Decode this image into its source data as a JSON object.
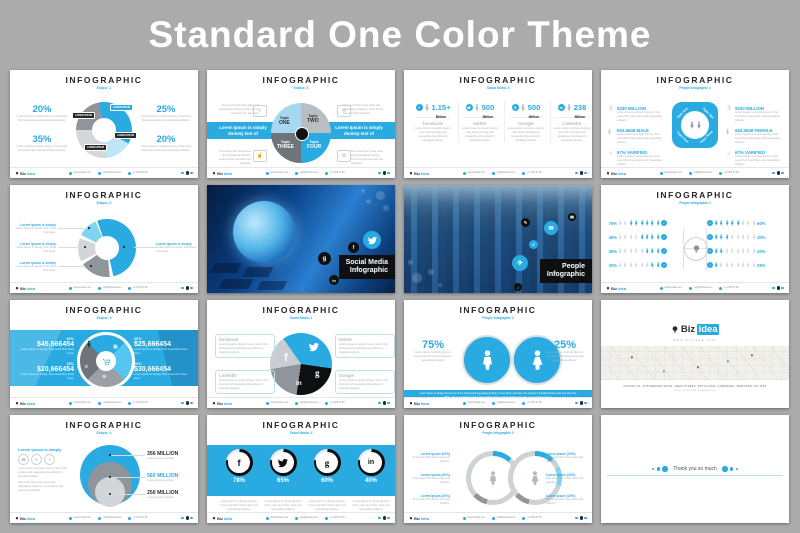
{
  "page": {
    "title": "Standard One Color Theme",
    "bg": "#ababab",
    "accent": "#29abe2"
  },
  "footer": {
    "brand_prefix": "Biz",
    "brand_suffix": "idea",
    "items": [
      "www.bizidea.com",
      "mail@bizidea.com",
      "+1 2345 67 89"
    ]
  },
  "icons": {
    "facebook": "f",
    "google": "g",
    "google_s": "S",
    "linkedin": "in",
    "check": "✓",
    "dollar": "$",
    "mail": "✉",
    "phone": "☎",
    "star": "✦",
    "trophy": "♕",
    "like": "☝",
    "gift": "✿",
    "crown": "♔",
    "calc": "▦",
    "globe": "⊕",
    "plane": "✈",
    "pencil": "✎",
    "check2": "✔"
  },
  "lorem": {
    "l1": "Lorem Ipsum is simply dummy, First Level Text Goes Here and typesetting industry.",
    "l2": "First Level Text Goes Here and typesetting industry, Lorem Ipsum has been the standard.",
    "l3": "Lorem Ipsum is simply dummy text of the printing and typesetting the industry's standard industry.",
    "l4": "Lorem Ipsum is simply",
    "l5": "Lorem Ipsum is simply, First Level Text Goes Here.",
    "cap": "Lorem Ipsum is simply dummy text of the printing and typesetting industry. Lorem Ipsum has been the industry's standard dummy text ever since the 1500s, when an unknown printer took a galley of type and scrambled it to make a type specimen book."
  },
  "slides": {
    "s1": {
      "title": "INFOGRAPHIC",
      "subtitle": "Eclipse, 1",
      "stats": [
        {
          "pct": "20%"
        },
        {
          "pct": "25%"
        },
        {
          "pct": "35%"
        },
        {
          "pct": "20%"
        }
      ],
      "bubbles": [
        "LOREM IPSUM",
        "LOREM IPSUM",
        "LOREM IPSUM",
        "LOREM IPSUM"
      ]
    },
    "s2": {
      "title": "INFOGRAPHIC",
      "subtitle": "Eclipse, 5",
      "banner": "Lorem Ipsum is simply dummy text of",
      "topic_pre": "Topic",
      "topics": [
        "ONE",
        "TWO",
        "THREE",
        "FOUR"
      ]
    },
    "s3": {
      "title": "INFOGRAPHIC",
      "subtitle": "Social Media, 2",
      "cols": [
        {
          "value": "1.15+",
          "unit": "Billion",
          "brand": "facebook"
        },
        {
          "value": "500",
          "unit": "Million",
          "brand": "twitter"
        },
        {
          "value": "500",
          "unit": "Million",
          "brand": "Google"
        },
        {
          "value": "238",
          "unit": "Million",
          "brand": "LinkedIn"
        }
      ]
    },
    "s4": {
      "title": "INFOGRAPHIC",
      "subtitle": "People Infographic 2",
      "topics": [
        "Topic One",
        "Topic Two",
        "Topic Three",
        "Topic Four"
      ],
      "left": [
        {
          "value": "$330 MILLION"
        },
        {
          "value": "654.5648 MALE"
        },
        {
          "value": "67% VARIFIED"
        }
      ],
      "right": [
        {
          "value": "$330 MILLION"
        },
        {
          "value": "654.5648 FEMALE"
        },
        {
          "value": "67% VARIFIED"
        }
      ]
    },
    "s5": {
      "title": "INFOGRAPHIC",
      "subtitle": "Eclipse, 2",
      "label_title": "Lorem Ipsum is simply",
      "label_text": "Lorem Ipsum is simply, First Level Text Goes."
    },
    "s6": {
      "label_line1": "Social Media",
      "label_line2": "Infographic"
    },
    "s7": {
      "label_line1": "People",
      "label_line2": "Infographic"
    },
    "s8": {
      "title": "INFOGRAPHIC",
      "subtitle": "People Infographic 4",
      "left": [
        {
          "pct": "75%",
          "filled": 6
        },
        {
          "pct": "45%",
          "filled": 4
        },
        {
          "pct": "30%",
          "filled": 3
        },
        {
          "pct": "20%",
          "filled": 2
        }
      ],
      "right": [
        {
          "pct": "60%",
          "filled": 5
        },
        {
          "pct": "30%",
          "filled": 3
        },
        {
          "pct": "20%",
          "filled": 2
        },
        {
          "pct": "05%",
          "filled": 1
        }
      ]
    },
    "s9": {
      "title": "INFOGRAPHIC",
      "subtitle": "Eclipse, 3",
      "stats": [
        {
          "pct": "40%",
          "value": "$45,666454"
        },
        {
          "pct": "20%",
          "value": "$25,666454"
        },
        {
          "pct": "15%",
          "value": "$20,666454"
        },
        {
          "pct": "25%",
          "value": "$30,666454"
        }
      ]
    },
    "s10": {
      "title": "INFOGRAPHIC",
      "subtitle": "Social Media, 1",
      "cards": [
        {
          "brand": "facebook"
        },
        {
          "brand": "twitter"
        },
        {
          "brand": "LinkedIn"
        },
        {
          "brand": "Google"
        }
      ]
    },
    "s11": {
      "title": "INFOGRAPHIC",
      "subtitle": "People Infographic 1",
      "left_pct": "75%",
      "right_pct": "25%"
    },
    "s12": {
      "url": "www.bizidea.com",
      "address": "HOUSE# 34, AUTHORIZED ROAD, JOHN STREET, APT FLOOR, LANDMARK, NEWYORK, NY 7894",
      "address2": "Phone: +1234 567 890  |  mail@bizidea.com"
    },
    "s13": {
      "title": "INFOGRAPHIC",
      "subtitle": "Eclipse, 4",
      "heading": "Lorem Ipsum is simply",
      "values": [
        {
          "v": "356 MILLION"
        },
        {
          "v": "560 MILLION"
        },
        {
          "v": "250 MILLION"
        }
      ]
    },
    "s14": {
      "title": "INFOGRAPHIC",
      "subtitle": "Social Media, 3",
      "items": [
        {
          "pct": "78%"
        },
        {
          "pct": "65%"
        },
        {
          "pct": "60%"
        },
        {
          "pct": "40%"
        }
      ]
    },
    "s15": {
      "title": "INFOGRAPHIC",
      "subtitle": "People Infographic 3",
      "label": "Lorem Ipsum (20%)",
      "label_text": "First Level Text Goes Here and Industry."
    },
    "s16": {
      "message": "Thank you so much"
    }
  }
}
